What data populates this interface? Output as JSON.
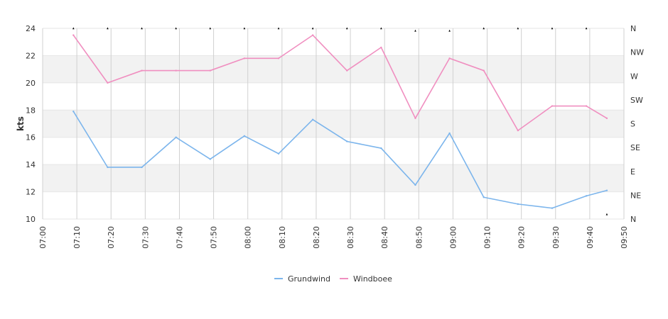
{
  "chart_data": {
    "type": "line",
    "title": "",
    "xlabel": "",
    "ylabel": "kts",
    "ylim": [
      10,
      24
    ],
    "yticks": [
      10,
      12,
      14,
      16,
      18,
      20,
      22,
      24
    ],
    "xticks": [
      "07:00",
      "07:10",
      "07:20",
      "07:30",
      "07:40",
      "07:50",
      "08:00",
      "08:10",
      "08:20",
      "08:30",
      "08:40",
      "08:50",
      "09:00",
      "09:10",
      "09:20",
      "09:30",
      "09:40",
      "09:50"
    ],
    "xlim": [
      "07:00",
      "09:50"
    ],
    "direction_axis": {
      "labels": [
        "N",
        "NE",
        "E",
        "SE",
        "S",
        "SW",
        "W",
        "NW",
        "N"
      ]
    },
    "grid": true,
    "legend_position": "bottom-center",
    "x": [
      "07:09",
      "07:19",
      "07:29",
      "07:39",
      "07:49",
      "07:59",
      "08:09",
      "08:19",
      "08:29",
      "08:39",
      "08:49",
      "08:59",
      "09:09",
      "09:19",
      "09:29",
      "09:39",
      "09:45"
    ],
    "series": [
      {
        "name": "Grundwind",
        "color": "#7cb5ec",
        "values": [
          17.9,
          13.8,
          13.8,
          16.0,
          14.4,
          16.1,
          14.8,
          17.3,
          15.7,
          15.2,
          12.5,
          16.3,
          11.6,
          11.1,
          10.8,
          11.7,
          12.1
        ]
      },
      {
        "name": "Windboee",
        "color": "#f08fc0",
        "values": [
          23.5,
          20.0,
          20.9,
          20.9,
          20.9,
          21.8,
          21.8,
          23.5,
          20.9,
          22.6,
          17.4,
          21.8,
          20.9,
          16.5,
          18.3,
          18.3,
          17.4
        ]
      }
    ],
    "direction_markers": {
      "x": [
        "07:09",
        "07:19",
        "07:29",
        "07:39",
        "07:49",
        "07:59",
        "08:09",
        "08:19",
        "08:29",
        "08:39",
        "08:49",
        "08:59",
        "09:09",
        "09:19",
        "09:29",
        "09:39",
        "09:45"
      ],
      "direction_index": [
        8,
        8,
        8,
        8,
        8,
        8,
        8,
        8,
        8,
        8,
        7.9,
        7.9,
        8,
        8,
        8,
        8,
        0.2
      ]
    }
  }
}
